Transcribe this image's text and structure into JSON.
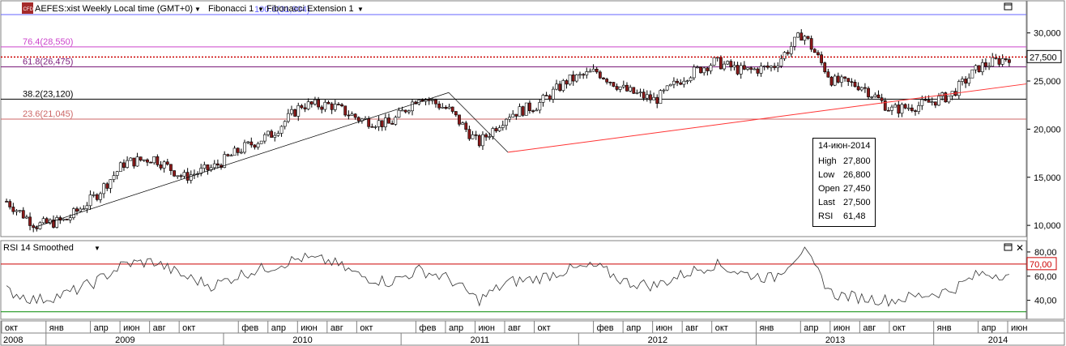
{
  "header": {
    "symbol_title": "AEFES:xist Weekly Local time (GMT+0)",
    "fib1": "Fibonacci 1",
    "fib2": "Fibonacci Extension 1",
    "cfd_badge": "CFD"
  },
  "colors": {
    "up_candle": "#ffffff",
    "down_candle": "#8b1a1a",
    "last_price_line": "#cc0000",
    "trend_line": "#ff3333",
    "fib_top": "#6666ff",
    "fib_76": "#cc44cc",
    "fib_23": "#cc6666",
    "rsi_70": "#cc0000",
    "rsi_30": "#008800"
  },
  "fib_levels": [
    {
      "label": "100.0(31,904)",
      "value": 31904
    },
    {
      "label": "76.4(28,550)",
      "value": 28550
    },
    {
      "label": "61.8(26,475)",
      "value": 26475
    },
    {
      "label": "38.2(23,120)",
      "value": 23120
    },
    {
      "label": "23.6(21,045)",
      "value": 21045
    }
  ],
  "last_price": {
    "label": "27,500",
    "value": 27500
  },
  "price_axis": {
    "ticks": [
      "30,000",
      "25,000",
      "20,000",
      "15,000",
      "10,000"
    ]
  },
  "rsi": {
    "title": "RSI 14 Smoothed",
    "ticks": [
      "80,00",
      "60,00",
      "40,00"
    ],
    "level_70_label": "70,00"
  },
  "tooltip": {
    "date": "14-июн-2014",
    "rows": [
      {
        "k": "High",
        "v": "27,800"
      },
      {
        "k": "Low",
        "v": "26,800"
      },
      {
        "k": "Open",
        "v": "27,450"
      },
      {
        "k": "Last",
        "v": "27,500"
      },
      {
        "k": "RSI",
        "v": "61,48"
      }
    ]
  },
  "time_axis": {
    "months": [
      "окт",
      "янв",
      "апр",
      "июн",
      "авг",
      "окт",
      "фев",
      "апр",
      "июн",
      "авг",
      "окт",
      "фев",
      "апр",
      "июн",
      "авг",
      "окт",
      "фев",
      "апр",
      "июн",
      "авг",
      "окт",
      "янв",
      "апр",
      "июн",
      "авг",
      "окт",
      "янв",
      "апр",
      "июн"
    ],
    "years": [
      "2008",
      "2009",
      "2010",
      "2011",
      "2012",
      "2013",
      "2014"
    ]
  },
  "chart_data": {
    "type": "candlestick",
    "title": "AEFES:xist Weekly",
    "ylim": [
      9000,
      33000
    ],
    "x_range": [
      "2008-10",
      "2014-06"
    ],
    "x": [
      "2008-10",
      "2008-12",
      "2009-02",
      "2009-04",
      "2009-06",
      "2009-08",
      "2009-10",
      "2009-12",
      "2010-02",
      "2010-04",
      "2010-06",
      "2010-08",
      "2010-10",
      "2010-12",
      "2011-02",
      "2011-04",
      "2011-06",
      "2011-08",
      "2011-10",
      "2011-12",
      "2012-02",
      "2012-04",
      "2012-06",
      "2012-08",
      "2012-10",
      "2012-12",
      "2013-02",
      "2013-04",
      "2013-06",
      "2013-08",
      "2013-10",
      "2013-12",
      "2014-02",
      "2014-04",
      "2014-06"
    ],
    "close": [
      12500,
      10000,
      10500,
      13000,
      16500,
      17000,
      15000,
      16000,
      18000,
      19500,
      22500,
      22500,
      21000,
      20500,
      23500,
      22000,
      18500,
      21500,
      22500,
      25000,
      26000,
      24000,
      23000,
      25500,
      27000,
      26000,
      26500,
      30000,
      25000,
      24500,
      22000,
      22500,
      23500,
      26500,
      27500
    ],
    "rsi_14": {
      "values": [
        48,
        40,
        45,
        55,
        70,
        72,
        60,
        52,
        62,
        68,
        75,
        72,
        60,
        55,
        65,
        58,
        40,
        55,
        58,
        65,
        68,
        55,
        52,
        62,
        70,
        62,
        58,
        82,
        45,
        42,
        40,
        44,
        48,
        62,
        61.48
      ],
      "levels": [
        70,
        30
      ]
    },
    "fibonacci": {
      "100.0": 31904,
      "76.4": 28550,
      "61.8": 26475,
      "38.2": 23120,
      "23.6": 21045
    },
    "trendline": {
      "from": {
        "x": "2011-08",
        "y": 17600
      },
      "to": {
        "x": "2014-06",
        "y": 24300
      }
    }
  }
}
